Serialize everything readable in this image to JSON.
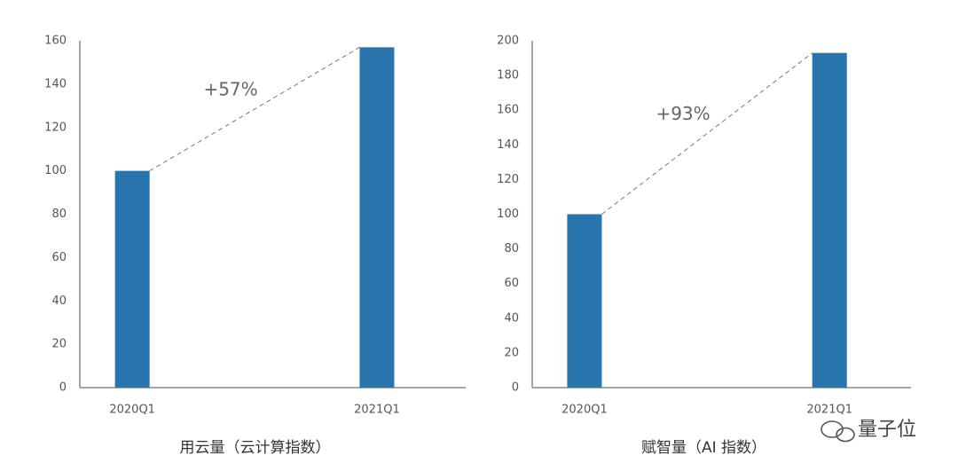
{
  "chart_data": [
    {
      "type": "bar",
      "title": "用云量（云计算指数）",
      "categories": [
        "2020Q1",
        "2021Q1"
      ],
      "values": [
        100,
        157
      ],
      "color": "#2874ad",
      "ylim": [
        0,
        160
      ],
      "yticks": [
        0,
        20,
        40,
        60,
        80,
        100,
        120,
        140,
        160
      ],
      "grid": false,
      "annotation": "+57%"
    },
    {
      "type": "bar",
      "title": "赋智量（AI 指数）",
      "categories": [
        "2020Q1",
        "2021Q1"
      ],
      "values": [
        100,
        193
      ],
      "color": "#2874ad",
      "ylim": [
        0,
        200
      ],
      "yticks": [
        0,
        20,
        40,
        60,
        80,
        100,
        120,
        140,
        160,
        180,
        200
      ],
      "grid": false,
      "annotation": "+93%"
    }
  ],
  "watermark": "量子位"
}
